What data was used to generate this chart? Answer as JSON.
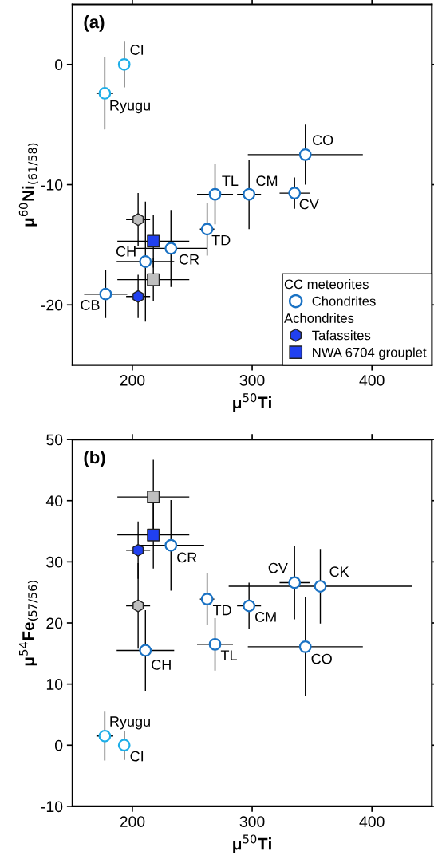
{
  "chart_data": [
    {
      "type": "scatter",
      "title": "(a)",
      "xlabel": "μ$^{50}$Ti",
      "ylabel": "μ$^{60}$Ni$_{(61/58)}$",
      "xlim": [
        150,
        450
      ],
      "ylim": [
        -25,
        5
      ],
      "xticks": [
        200,
        300,
        400
      ],
      "yticks": [
        -20,
        -10,
        0
      ],
      "grid": false,
      "legend": "bottom right",
      "legend_title": "CC meteorites",
      "series": [
        {
          "name": "Chondrites",
          "marker": "circle",
          "color": "#1a72c4",
          "colors": [
            "#1eaee8",
            "#1eaee8",
            "#1a72c4",
            "#1a72c4",
            "#1a72c4",
            "#1a72c4",
            "#1a72c4",
            "#1a72c4",
            "#1a72c4",
            "#1a72c4"
          ],
          "x": [
            193.2,
            177,
            344.4,
            269,
            297.4,
            335.4,
            262.4,
            232.2,
            210.9,
            177.7
          ],
          "values": [
            0,
            -2.4,
            -7.5,
            -10.8,
            -10.8,
            -10.7,
            -13.7,
            -15.3,
            -16.4,
            -19.1
          ],
          "xerrors": [
            null,
            7,
            48,
            15,
            10,
            12.5,
            6,
            30,
            24,
            18
          ],
          "errors": [
            1.9,
            3.0,
            2.5,
            2.5,
            2.9,
            1.3,
            2.2,
            3.2,
            5.0,
            2.0
          ]
        },
        {
          "name": "Tafassites",
          "color": "#2040f0",
          "x": [
            204.8
          ],
          "values": [
            -19.3
          ],
          "xerrors": [
            10
          ],
          "errors": [
            1.8
          ]
        },
        {
          "color": "#bfbfbf",
          "x": [
            204.8
          ],
          "values": [
            -12.9
          ],
          "xerrors": [
            10
          ],
          "errors": [
            2.2
          ]
        },
        {
          "name": "NWA 6704 grouplet",
          "marker": "square",
          "color": "#2040f0",
          "x": [
            217.5
          ],
          "values": [
            -14.7
          ],
          "xerrors": [
            30
          ],
          "errors": [
            2.2
          ]
        },
        {
          "marker": "square",
          "color": "#bfbfbf",
          "x": [
            217.5
          ],
          "values": [
            -17.9
          ],
          "xerrors": [
            30
          ],
          "errors": [
            1.8
          ]
        }
      ],
      "annotations": [
        "Achondrites",
        {
          "text": "CI",
          "x": 193.2,
          "y": 0
        },
        {
          "text": "Ryugu",
          "x": 177,
          "y": -2.4
        },
        {
          "text": "CO",
          "x": 344.4,
          "y": -7.5
        },
        {
          "text": "TL",
          "x": 269,
          "y": -10.8
        },
        {
          "text": "CM",
          "x": 297.4,
          "y": -10.8
        },
        {
          "text": "CV",
          "x": 335.4,
          "y": -10.7
        },
        {
          "text": "TD",
          "x": 262.4,
          "y": -13.7
        },
        {
          "text": "CR",
          "x": 232.2,
          "y": -15.3
        },
        {
          "text": "CH",
          "x": 210.9,
          "y": -16.4
        },
        {
          "text": "CB",
          "x": 177.7,
          "y": -19.1
        }
      ]
    },
    {
      "type": "scatter",
      "title": "(b)",
      "xlabel": "μ$^{50}$Ti",
      "ylabel": "μ$^{54}$Fe$_{(57/56)}$",
      "xlim": [
        150,
        450
      ],
      "ylim": [
        -10,
        50
      ],
      "xticks": [
        200,
        300,
        400
      ],
      "yticks": [
        -10,
        0,
        10,
        20,
        30,
        40,
        50
      ],
      "grid": false,
      "series": [
        {
          "marker": "circle",
          "color": "#1a72c4",
          "colors": [
            "#1eaee8",
            "#1eaee8",
            "#1a72c4",
            "#1a72c4",
            "#1a72c4",
            "#1a72c4",
            "#1a72c4",
            "#1a72c4",
            "#1a72c4",
            "#1a72c4"
          ],
          "x": [
            193.2,
            177,
            344.4,
            269,
            297.4,
            335.4,
            356.9,
            262.4,
            232.2,
            210.9
          ],
          "values": [
            0,
            1.5,
            16.1,
            16.5,
            22.8,
            26.6,
            26.0,
            23.9,
            32.7,
            15.5
          ],
          "xerrors": [
            null,
            7,
            48,
            15,
            10,
            12.5,
            76.5,
            6,
            27.7,
            24
          ],
          "errors": [
            2.4,
            4.0,
            8.1,
            4.3,
            3.8,
            6.0,
            6.1,
            4.3,
            7.4,
            6.6
          ]
        },
        {
          "color": "#2040f0",
          "x": [
            204.8
          ],
          "values": [
            31.9
          ],
          "xerrors": [
            10
          ],
          "errors": [
            4.7
          ]
        },
        {
          "color": "#bfbfbf",
          "x": [
            204.8
          ],
          "values": [
            22.8
          ],
          "xerrors": [
            10
          ],
          "errors": [
            7
          ]
        },
        {
          "marker": "square",
          "color": "#2040f0",
          "x": [
            217.5
          ],
          "values": [
            34.4
          ],
          "xerrors": [
            30
          ],
          "errors": [
            5.5
          ]
        },
        {
          "marker": "square",
          "color": "#bfbfbf",
          "x": [
            217.5
          ],
          "values": [
            40.6
          ],
          "xerrors": [
            30
          ],
          "errors": [
            6.1
          ]
        }
      ],
      "annotations": [
        {
          "text": "CI",
          "x": 193.2,
          "y": 0
        },
        {
          "text": "Ryugu",
          "x": 177,
          "y": 1.5
        },
        {
          "text": "CO",
          "x": 344.4,
          "y": 16.1
        },
        {
          "text": "TL",
          "x": 269,
          "y": 16.5
        },
        {
          "text": "CM",
          "x": 297.4,
          "y": 22.8
        },
        {
          "text": "CV",
          "x": 335.4,
          "y": 26.6
        },
        {
          "text": "CK",
          "x": 356.9,
          "y": 26.0
        },
        {
          "text": "TD",
          "x": 262.4,
          "y": 23.9
        },
        {
          "text": "CR",
          "x": 232.2,
          "y": 32.7
        },
        {
          "text": "CH",
          "x": 210.9,
          "y": 15.5
        }
      ]
    }
  ]
}
